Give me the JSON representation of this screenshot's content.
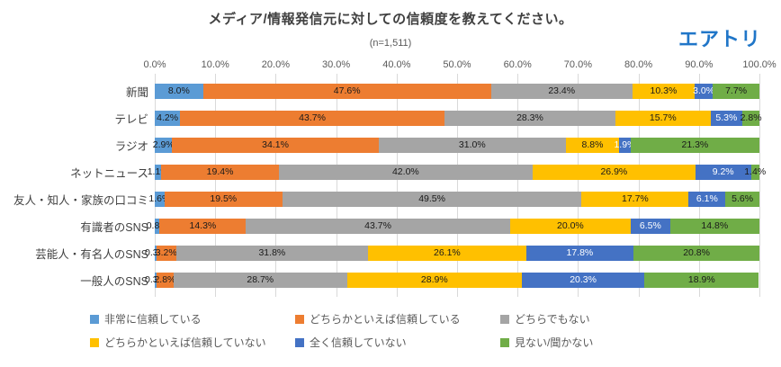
{
  "header": {
    "logo": "エアトリ"
  },
  "chart_data": {
    "type": "bar",
    "stacked": true,
    "orientation": "horizontal",
    "title": "メディア/情報発信元に対しての信頼度を教えてください。",
    "subtitle": "(n=1,511)",
    "xlabel": "",
    "ylabel": "",
    "x_axis": {
      "min": 0,
      "max": 100,
      "ticks": [
        "0.0%",
        "10.0%",
        "20.0%",
        "30.0%",
        "40.0%",
        "50.0%",
        "60.0%",
        "70.0%",
        "80.0%",
        "90.0%",
        "100.0%"
      ],
      "grid": true
    },
    "legend_position": "bottom",
    "categories": [
      "新聞",
      "テレビ",
      "ラジオ",
      "ネットニュース",
      "友人・知人・家族の口コミ",
      "有識者のSNS",
      "芸能人・有名人のSNS",
      "一般人のSNS"
    ],
    "series": [
      {
        "name": "非常に信頼している",
        "color": "#5B9BD5",
        "label_color": "#1a1a1a",
        "values": [
          8.0,
          4.2,
          2.9,
          1.1,
          1.6,
          0.8,
          0.3,
          0.3
        ]
      },
      {
        "name": "どちらかといえば信頼している",
        "color": "#ED7D31",
        "label_color": "#1a1a1a",
        "values": [
          47.6,
          43.7,
          34.1,
          19.4,
          19.5,
          14.3,
          3.2,
          2.8
        ]
      },
      {
        "name": "どちらでもない",
        "color": "#A5A5A5",
        "label_color": "#1a1a1a",
        "values": [
          23.4,
          28.3,
          31.0,
          42.0,
          49.5,
          43.7,
          31.8,
          28.7
        ]
      },
      {
        "name": "どちらかといえば信頼していない",
        "color": "#FFC000",
        "label_color": "#1a1a1a",
        "values": [
          10.3,
          15.7,
          8.8,
          26.9,
          17.7,
          20.0,
          26.1,
          28.9
        ]
      },
      {
        "name": "全く信頼していない",
        "color": "#4472C4",
        "label_color": "#ffffff",
        "values": [
          3.0,
          5.3,
          1.9,
          9.2,
          6.1,
          6.5,
          17.8,
          20.3
        ]
      },
      {
        "name": "見ない/聞かない",
        "color": "#70AD47",
        "label_color": "#1a1a1a",
        "values": [
          7.7,
          2.8,
          21.3,
          1.4,
          5.6,
          14.8,
          20.8,
          18.9
        ]
      }
    ]
  }
}
